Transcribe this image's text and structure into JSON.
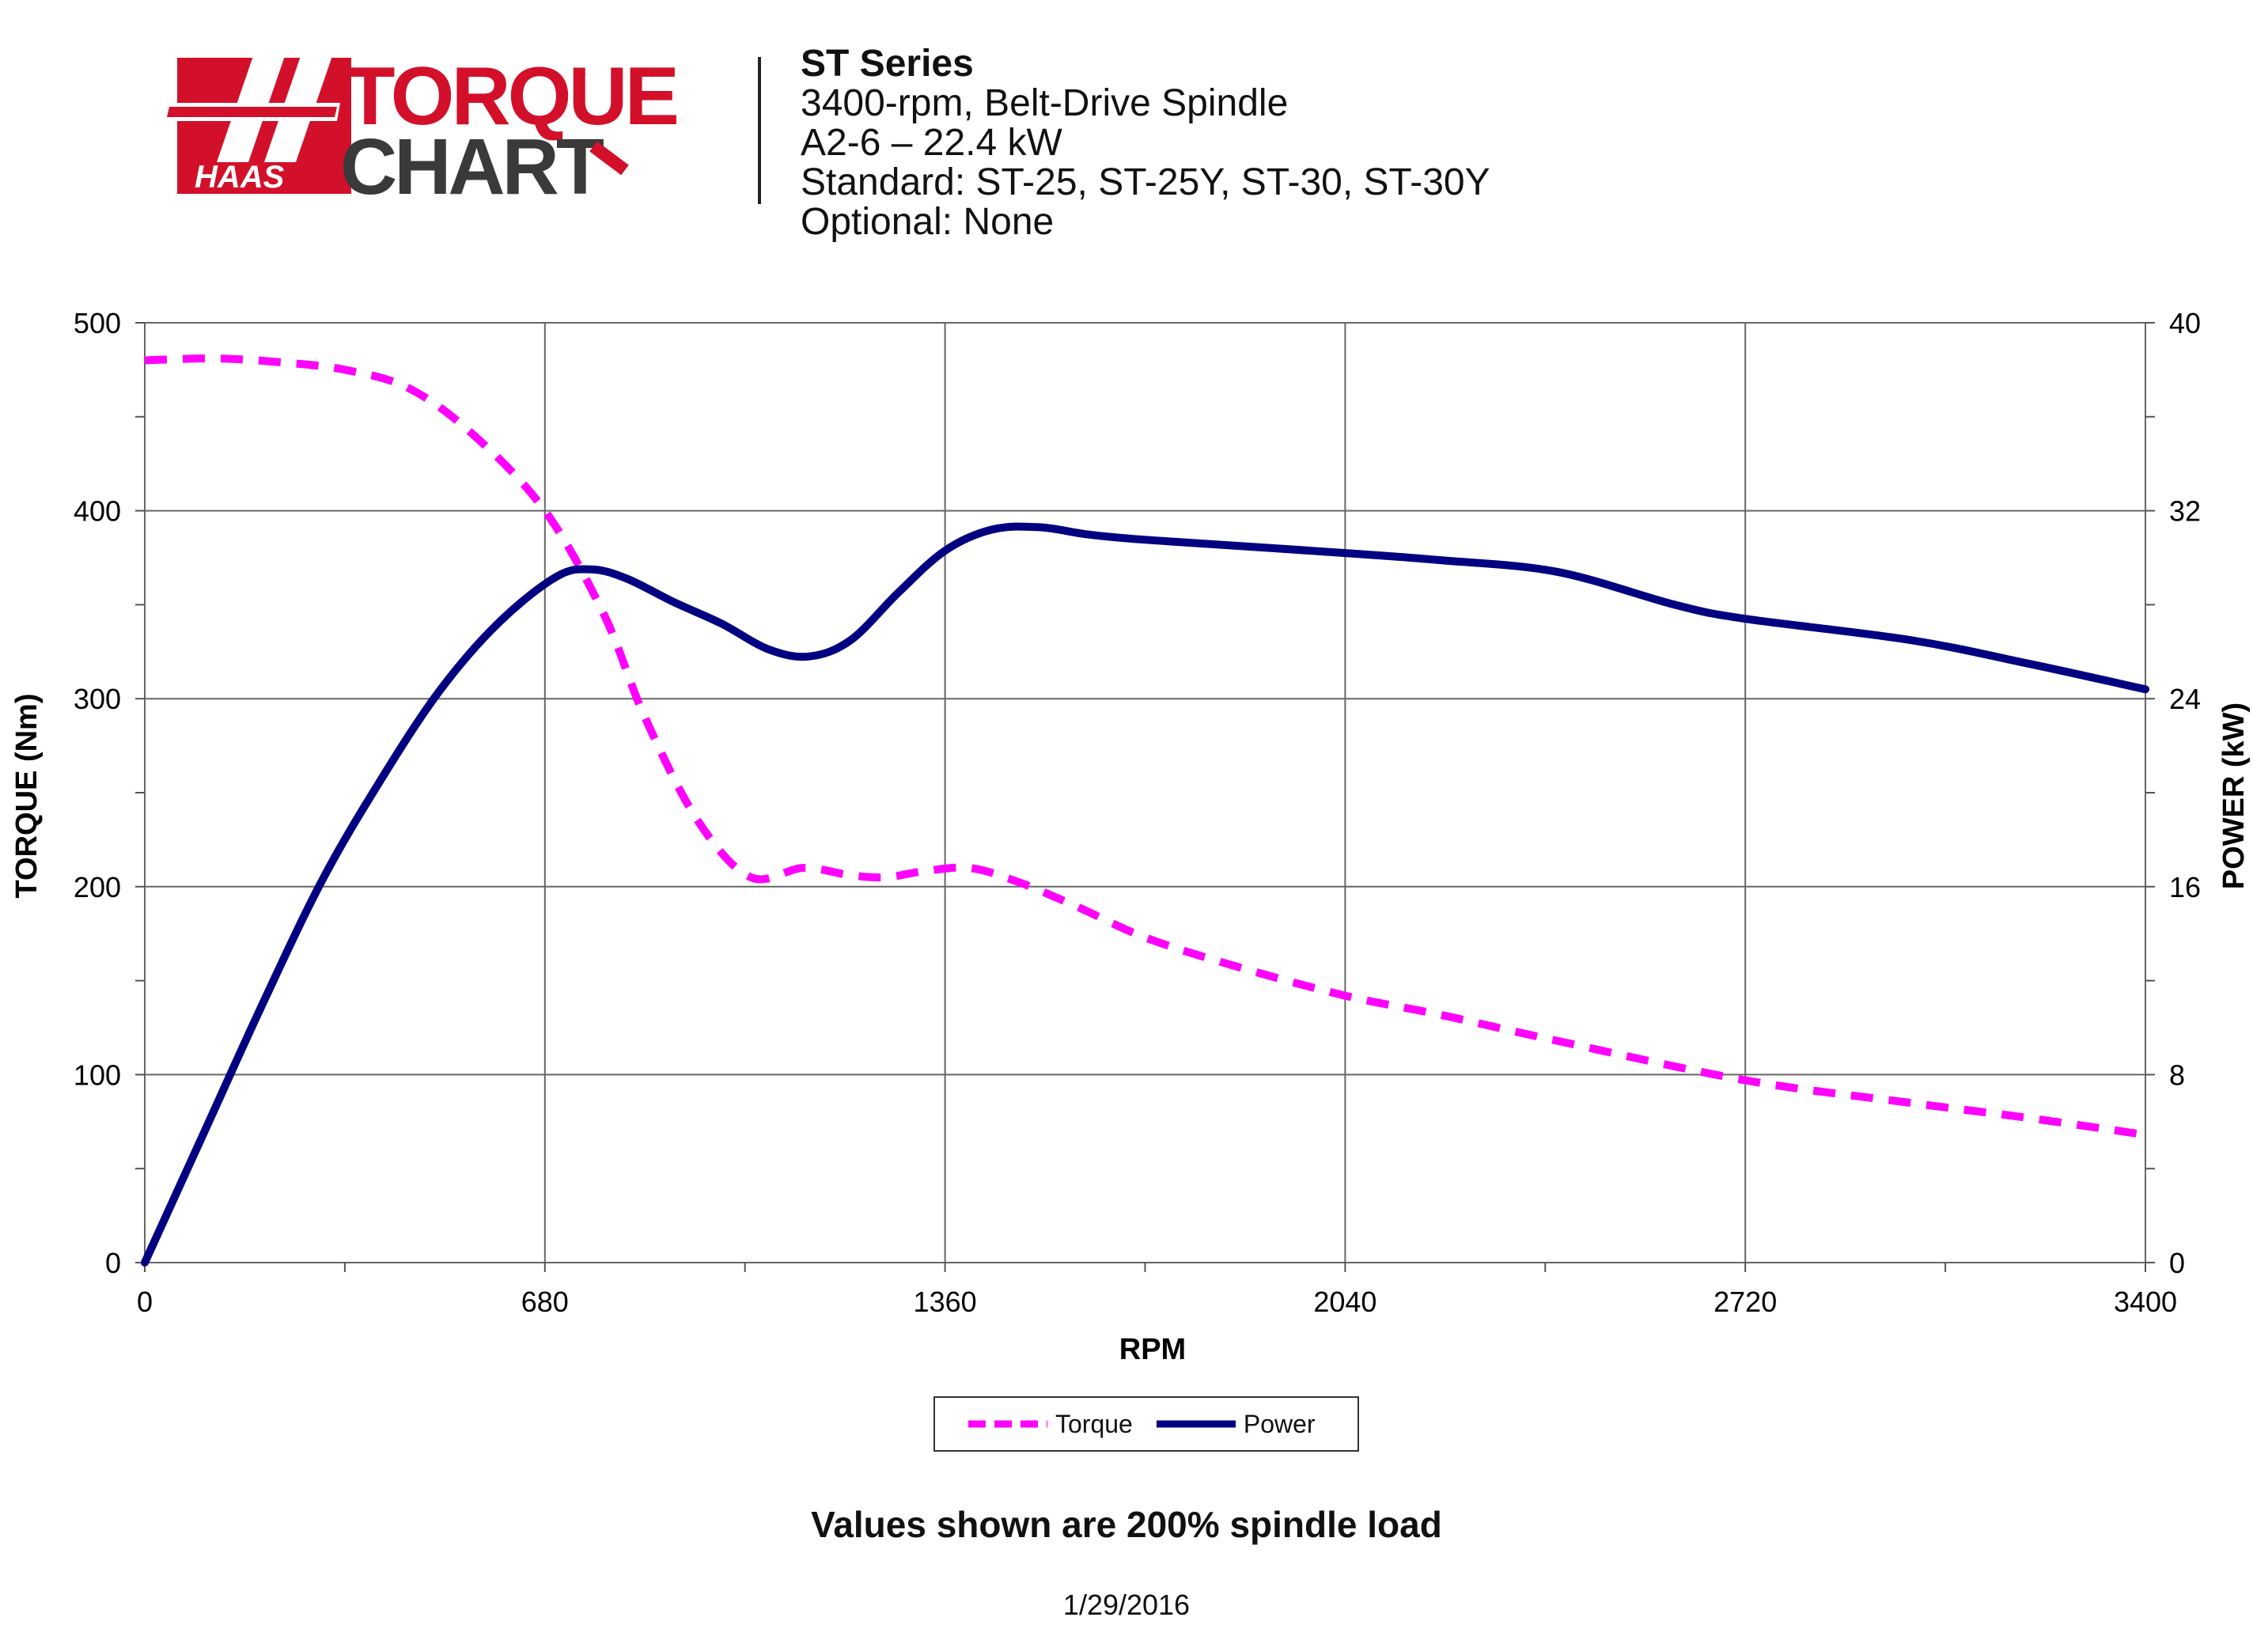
{
  "logo": {
    "brand": "HAAS",
    "word1": "TORQUE",
    "word2": "CHART"
  },
  "header": {
    "title": "ST Series",
    "lines": [
      "3400-rpm, Belt-Drive Spindle",
      "A2-6 – 22.4 kW",
      "Standard: ST-25, ST-25Y, ST-30, ST-30Y",
      "Optional: None"
    ]
  },
  "colors": {
    "torque": "#ff00ff",
    "power": "#000080",
    "logo_red": "#d3102a",
    "logo_gray": "#3a3a3a"
  },
  "chart_data": {
    "type": "line",
    "xlabel": "RPM",
    "ylabel": "TORQUE (Nm)",
    "y2label": "POWER (kW)",
    "xlim": [
      0,
      3400
    ],
    "ylim": [
      0,
      500
    ],
    "y2lim": [
      0,
      40
    ],
    "xticks": [
      0,
      680,
      1360,
      2040,
      2720,
      3400
    ],
    "yticks": [
      0,
      100,
      200,
      300,
      400,
      500
    ],
    "y2ticks": [
      0,
      8,
      16,
      24,
      32,
      40
    ],
    "grid": true,
    "legend_position": "bottom-center",
    "series": [
      {
        "name": "Torque",
        "axis": "left",
        "style": "dashed",
        "x": [
          0,
          120,
          230,
          340,
          450,
          560,
          680,
          780,
          850,
          940,
          1030,
          1120,
          1200,
          1260,
          1320,
          1400,
          1480,
          1580,
          1700,
          1850,
          2040,
          2200,
          2400,
          2720,
          3000,
          3200,
          3400
        ],
        "y": [
          480,
          481,
          479,
          475,
          465,
          440,
          400,
          345,
          290,
          235,
          205,
          210,
          206,
          205,
          208,
          210,
          203,
          190,
          173,
          158,
          142,
          132,
          118,
          97,
          85,
          77,
          68
        ]
      },
      {
        "name": "Power",
        "axis": "right",
        "style": "solid",
        "x": [
          0,
          100,
          200,
          300,
          400,
          500,
          600,
          700,
          760,
          820,
          900,
          980,
          1060,
          1130,
          1200,
          1280,
          1360,
          1440,
          1520,
          1600,
          1680,
          1800,
          2040,
          2200,
          2400,
          2600,
          2720,
          3000,
          3200,
          3400
        ],
        "y": [
          0,
          5.5,
          11,
          16.2,
          20.5,
          24.3,
          27.2,
          29.2,
          29.5,
          29.1,
          28.1,
          27.2,
          26.1,
          25.8,
          26.5,
          28.5,
          30.3,
          31.2,
          31.3,
          31,
          30.8,
          30.6,
          30.2,
          29.9,
          29.4,
          28,
          27.4,
          26.5,
          25.5,
          24.4
        ]
      }
    ]
  },
  "note": "Values shown are 200% spindle load",
  "date": "1/29/2016"
}
